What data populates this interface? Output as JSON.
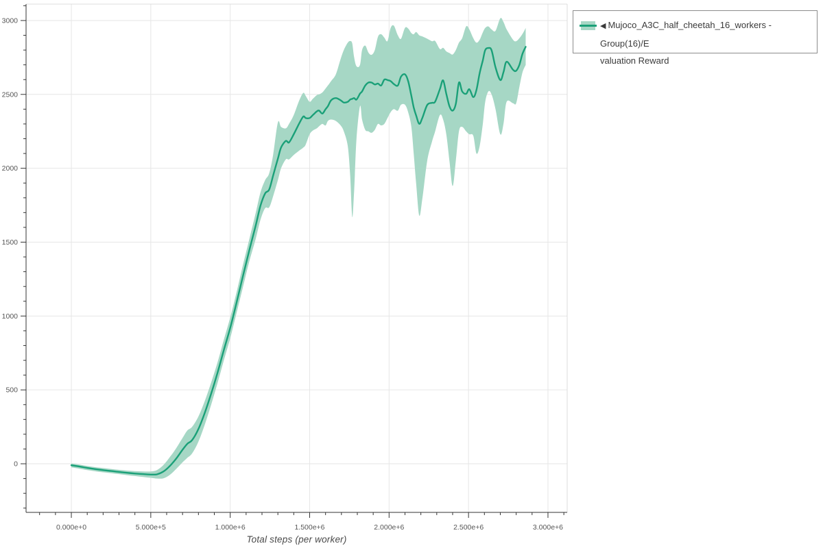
{
  "figure": {
    "background": "#ffffff"
  },
  "legend": {
    "toggle_icon": "◀",
    "label_line1": "Mujoco_A3C_half_cheetah_16_workers - Group(16)/E",
    "label_line2": "valuation Reward"
  },
  "colors": {
    "line": "#1aa078",
    "band": "#a6d7c5",
    "grid": "#e6e6e6",
    "axis": "#333333",
    "plot_border": "#dcdcdc",
    "tick_label": "#555555",
    "axis_title": "#4a4a4a",
    "legend_border": "#8c8c8c",
    "legend_text": "#3a3a3a"
  },
  "chart_data": {
    "type": "line",
    "title": "",
    "xlabel": "Total steps (per worker)",
    "ylabel": "",
    "grid": true,
    "legend_position": "outside-top-right",
    "x_axis": {
      "min": -285000,
      "max": 3121000,
      "minor_step": 100000,
      "ticks": [
        {
          "value": 0,
          "label": "0.000e+0"
        },
        {
          "value": 500000,
          "label": "5.000e+5"
        },
        {
          "value": 1000000,
          "label": "1.000e+6"
        },
        {
          "value": 1500000,
          "label": "1.500e+6"
        },
        {
          "value": 2000000,
          "label": "2.000e+6"
        },
        {
          "value": 2500000,
          "label": "2.500e+6"
        },
        {
          "value": 3000000,
          "label": "3.000e+6"
        }
      ]
    },
    "y_axis": {
      "min": -329,
      "max": 3111,
      "minor_step": 100,
      "ticks": [
        {
          "value": 0,
          "label": "0"
        },
        {
          "value": 500,
          "label": "500"
        },
        {
          "value": 1000,
          "label": "1000"
        },
        {
          "value": 1500,
          "label": "1500"
        },
        {
          "value": 2000,
          "label": "2000"
        },
        {
          "value": 2500,
          "label": "2500"
        },
        {
          "value": 3000,
          "label": "3000"
        }
      ]
    },
    "series": [
      {
        "name": "Mujoco_A3C_half_cheetah_16_workers - Group(16)/Evaluation Reward",
        "color": "#1aa078",
        "band_color": "#a6d7c5",
        "x": [
          0,
          50000,
          100000,
          150000,
          200000,
          250000,
          300000,
          350000,
          400000,
          450000,
          500000,
          540000,
          580000,
          620000,
          660000,
          700000,
          730000,
          760000,
          800000,
          840000,
          880000,
          920000,
          960000,
          1000000,
          1040000,
          1080000,
          1120000,
          1160000,
          1190000,
          1220000,
          1245000,
          1270000,
          1300000,
          1320000,
          1350000,
          1370000,
          1400000,
          1435000,
          1460000,
          1475000,
          1500000,
          1520000,
          1545000,
          1560000,
          1580000,
          1600000,
          1615000,
          1635000,
          1665000,
          1695000,
          1715000,
          1740000,
          1755000,
          1768000,
          1780000,
          1795000,
          1817000,
          1830000,
          1850000,
          1870000,
          1890000,
          1910000,
          1930000,
          1950000,
          1970000,
          1990000,
          2010000,
          2030000,
          2055000,
          2075000,
          2100000,
          2120000,
          2140000,
          2155000,
          2170000,
          2190000,
          2210000,
          2240000,
          2270000,
          2290000,
          2320000,
          2340000,
          2360000,
          2380000,
          2400000,
          2420000,
          2440000,
          2460000,
          2485000,
          2505000,
          2530000,
          2550000,
          2570000,
          2590000,
          2605000,
          2625000,
          2645000,
          2670000,
          2700000,
          2720000,
          2740000,
          2780000,
          2800000,
          2820000,
          2840000,
          2860000
        ],
        "mean": [
          -10,
          -18,
          -28,
          -36,
          -43,
          -49,
          -55,
          -61,
          -66,
          -70,
          -73,
          -71,
          -52,
          -15,
          35,
          95,
          135,
          160,
          235,
          345,
          475,
          615,
          770,
          920,
          1090,
          1270,
          1445,
          1610,
          1745,
          1830,
          1855,
          1950,
          2065,
          2140,
          2185,
          2175,
          2230,
          2305,
          2350,
          2340,
          2340,
          2360,
          2385,
          2390,
          2370,
          2400,
          2420,
          2460,
          2475,
          2460,
          2445,
          2450,
          2465,
          2470,
          2475,
          2465,
          2505,
          2520,
          2560,
          2580,
          2580,
          2567,
          2573,
          2560,
          2600,
          2597,
          2590,
          2570,
          2560,
          2620,
          2636,
          2590,
          2490,
          2412,
          2358,
          2301,
          2343,
          2428,
          2443,
          2451,
          2536,
          2595,
          2504,
          2420,
          2390,
          2436,
          2580,
          2520,
          2504,
          2535,
          2482,
          2530,
          2644,
          2730,
          2800,
          2814,
          2799,
          2683,
          2597,
          2650,
          2721,
          2667,
          2660,
          2700,
          2776,
          2822
        ],
        "band_low": [
          -25,
          -33,
          -43,
          -51,
          -58,
          -64,
          -70,
          -77,
          -83,
          -89,
          -95,
          -100,
          -98,
          -75,
          -35,
          10,
          40,
          70,
          150,
          265,
          400,
          545,
          700,
          850,
          1020,
          1195,
          1370,
          1520,
          1650,
          1730,
          1735,
          1810,
          1920,
          2000,
          2060,
          2060,
          2090,
          2120,
          2140,
          2160,
          2230,
          2255,
          2270,
          2285,
          2300,
          2290,
          2320,
          2330,
          2320,
          2290,
          2250,
          2150,
          1950,
          1670,
          1850,
          2200,
          2420,
          2330,
          2260,
          2250,
          2240,
          2260,
          2300,
          2290,
          2300,
          2340,
          2380,
          2400,
          2390,
          2430,
          2430,
          2380,
          2280,
          2100,
          1900,
          1680,
          1800,
          2050,
          2180,
          2250,
          2360,
          2330,
          2230,
          2050,
          1880,
          2050,
          2250,
          2280,
          2250,
          2230,
          2220,
          2100,
          2150,
          2300,
          2450,
          2520,
          2500,
          2400,
          2230,
          2300,
          2450,
          2440,
          2440,
          2550,
          2650,
          2700
        ],
        "band_high": [
          3,
          -6,
          -15,
          -23,
          -29,
          -35,
          -41,
          -46,
          -50,
          -52,
          -52,
          -42,
          -8,
          45,
          105,
          175,
          225,
          250,
          320,
          425,
          550,
          685,
          840,
          990,
          1160,
          1345,
          1520,
          1695,
          1835,
          1920,
          1965,
          2090,
          2310,
          2280,
          2270,
          2300,
          2360,
          2460,
          2510,
          2490,
          2450,
          2470,
          2495,
          2500,
          2513,
          2540,
          2560,
          2590,
          2636,
          2740,
          2800,
          2850,
          2861,
          2845,
          2750,
          2690,
          2700,
          2800,
          2830,
          2783,
          2768,
          2800,
          2890,
          2907,
          2884,
          2861,
          2950,
          2965,
          2900,
          2877,
          2950,
          2946,
          2915,
          2907,
          2922,
          2900,
          2892,
          2877,
          2860,
          2861,
          2807,
          2815,
          2791,
          2780,
          2770,
          2800,
          2850,
          2880,
          2960,
          2940,
          2880,
          2850,
          2870,
          2920,
          2950,
          2960,
          2940,
          2930,
          3015,
          2990,
          2940,
          2870,
          2860,
          2880,
          2910,
          2950
        ]
      }
    ]
  }
}
